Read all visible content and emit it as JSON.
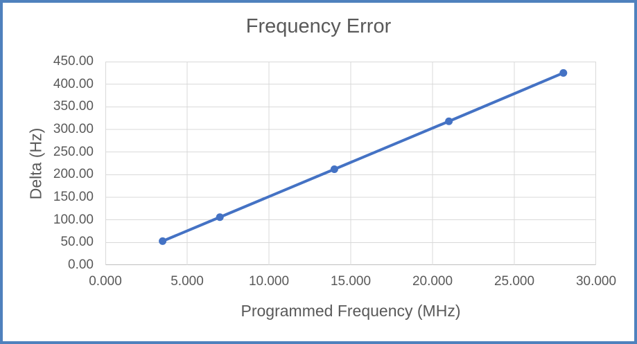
{
  "chart_data": {
    "type": "line",
    "title": "Frequency Error",
    "xlabel": "Programmed Frequency (MHz)",
    "ylabel": "Delta (Hz)",
    "xlim": [
      0,
      30
    ],
    "ylim": [
      0,
      450
    ],
    "grid": true,
    "legend_position": "none",
    "x_ticks": [
      {
        "value": 0,
        "label": "0.000"
      },
      {
        "value": 5,
        "label": "5.000"
      },
      {
        "value": 10,
        "label": "10.000"
      },
      {
        "value": 15,
        "label": "15.000"
      },
      {
        "value": 20,
        "label": "20.000"
      },
      {
        "value": 25,
        "label": "25.000"
      },
      {
        "value": 30,
        "label": "30.000"
      }
    ],
    "y_ticks": [
      {
        "value": 0,
        "label": "0.00"
      },
      {
        "value": 50,
        "label": "50.00"
      },
      {
        "value": 100,
        "label": "100.00"
      },
      {
        "value": 150,
        "label": "150.00"
      },
      {
        "value": 200,
        "label": "200.00"
      },
      {
        "value": 250,
        "label": "250.00"
      },
      {
        "value": 300,
        "label": "300.00"
      },
      {
        "value": 350,
        "label": "350.00"
      },
      {
        "value": 400,
        "label": "400.00"
      },
      {
        "value": 450,
        "label": "450.00"
      }
    ],
    "series": [
      {
        "name": "Frequency Error",
        "marker": "circle",
        "color": "#4472C4",
        "points": [
          {
            "x": 3.5,
            "y": 53
          },
          {
            "x": 7,
            "y": 106
          },
          {
            "x": 14,
            "y": 212
          },
          {
            "x": 21,
            "y": 318
          },
          {
            "x": 28,
            "y": 425
          }
        ]
      }
    ],
    "colors": {
      "frame_border": "#4F81BD",
      "background": "#FFFFFF",
      "text": "#595959",
      "gridline": "#D9D9D9",
      "axis_line": "#BFBFBF",
      "series_line": "#4472C4"
    }
  }
}
